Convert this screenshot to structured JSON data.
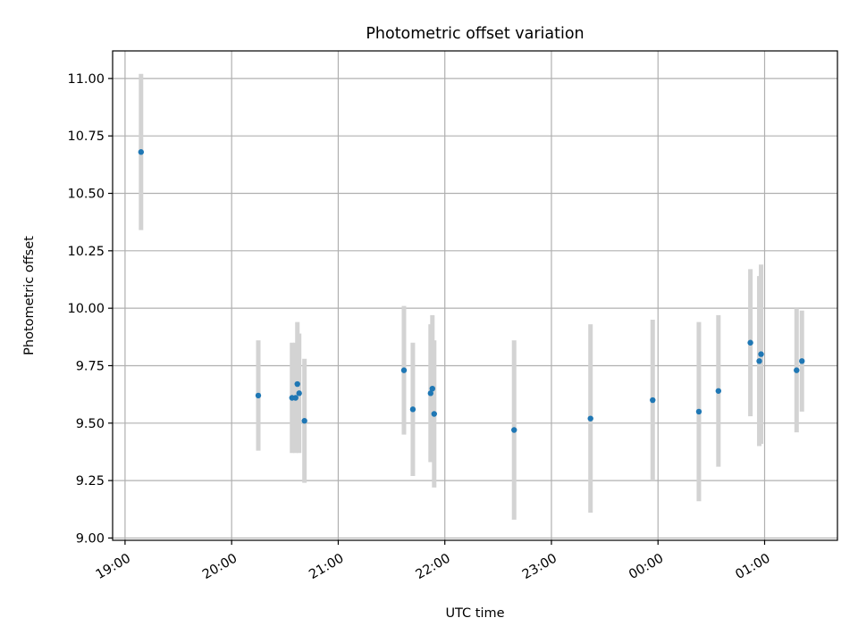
{
  "chart_data": {
    "type": "scatter",
    "title": "Photometric offset variation",
    "xlabel": "UTC time",
    "ylabel": "Photometric offset",
    "x_unit": "UTC",
    "xlim": [
      "18:53",
      "01:41"
    ],
    "ylim": [
      8.99,
      11.12
    ],
    "x_ticks": [
      "19:00",
      "20:00",
      "21:00",
      "22:00",
      "23:00",
      "00:00",
      "01:00"
    ],
    "y_ticks": [
      "9.00",
      "9.25",
      "9.50",
      "9.75",
      "10.00",
      "10.25",
      "10.50",
      "10.75",
      "11.00"
    ],
    "grid": true,
    "legend": "none",
    "colors": {
      "point": "#1f77b4",
      "errorbar": "#d3d3d3",
      "grid": "#b0b0b0"
    },
    "series": [
      {
        "points": [
          {
            "t": "19:09",
            "y": 10.68,
            "err": 0.34
          },
          {
            "t": "20:15",
            "y": 9.62,
            "err": 0.24
          },
          {
            "t": "20:34",
            "y": 9.61,
            "err": 0.24
          },
          {
            "t": "20:36",
            "y": 9.61,
            "err": 0.24
          },
          {
            "t": "20:37",
            "y": 9.67,
            "err": 0.27
          },
          {
            "t": "20:38",
            "y": 9.63,
            "err": 0.26
          },
          {
            "t": "20:41",
            "y": 9.51,
            "err": 0.27
          },
          {
            "t": "21:37",
            "y": 9.73,
            "err": 0.28
          },
          {
            "t": "21:42",
            "y": 9.56,
            "err": 0.29
          },
          {
            "t": "21:52",
            "y": 9.63,
            "err": 0.3
          },
          {
            "t": "21:53",
            "y": 9.65,
            "err": 0.32
          },
          {
            "t": "21:54",
            "y": 9.54,
            "err": 0.32
          },
          {
            "t": "22:39",
            "y": 9.47,
            "err": 0.39
          },
          {
            "t": "23:22",
            "y": 9.52,
            "err": 0.41
          },
          {
            "t": "23:57",
            "y": 9.6,
            "err": 0.35
          },
          {
            "t": "00:23",
            "y": 9.55,
            "err": 0.39
          },
          {
            "t": "00:34",
            "y": 9.64,
            "err": 0.33
          },
          {
            "t": "00:52",
            "y": 9.85,
            "err": 0.32
          },
          {
            "t": "00:57",
            "y": 9.77,
            "err": 0.37
          },
          {
            "t": "00:58",
            "y": 9.8,
            "err": 0.39
          },
          {
            "t": "01:18",
            "y": 9.73,
            "err": 0.27
          },
          {
            "t": "01:21",
            "y": 9.77,
            "err": 0.22
          }
        ]
      }
    ]
  }
}
